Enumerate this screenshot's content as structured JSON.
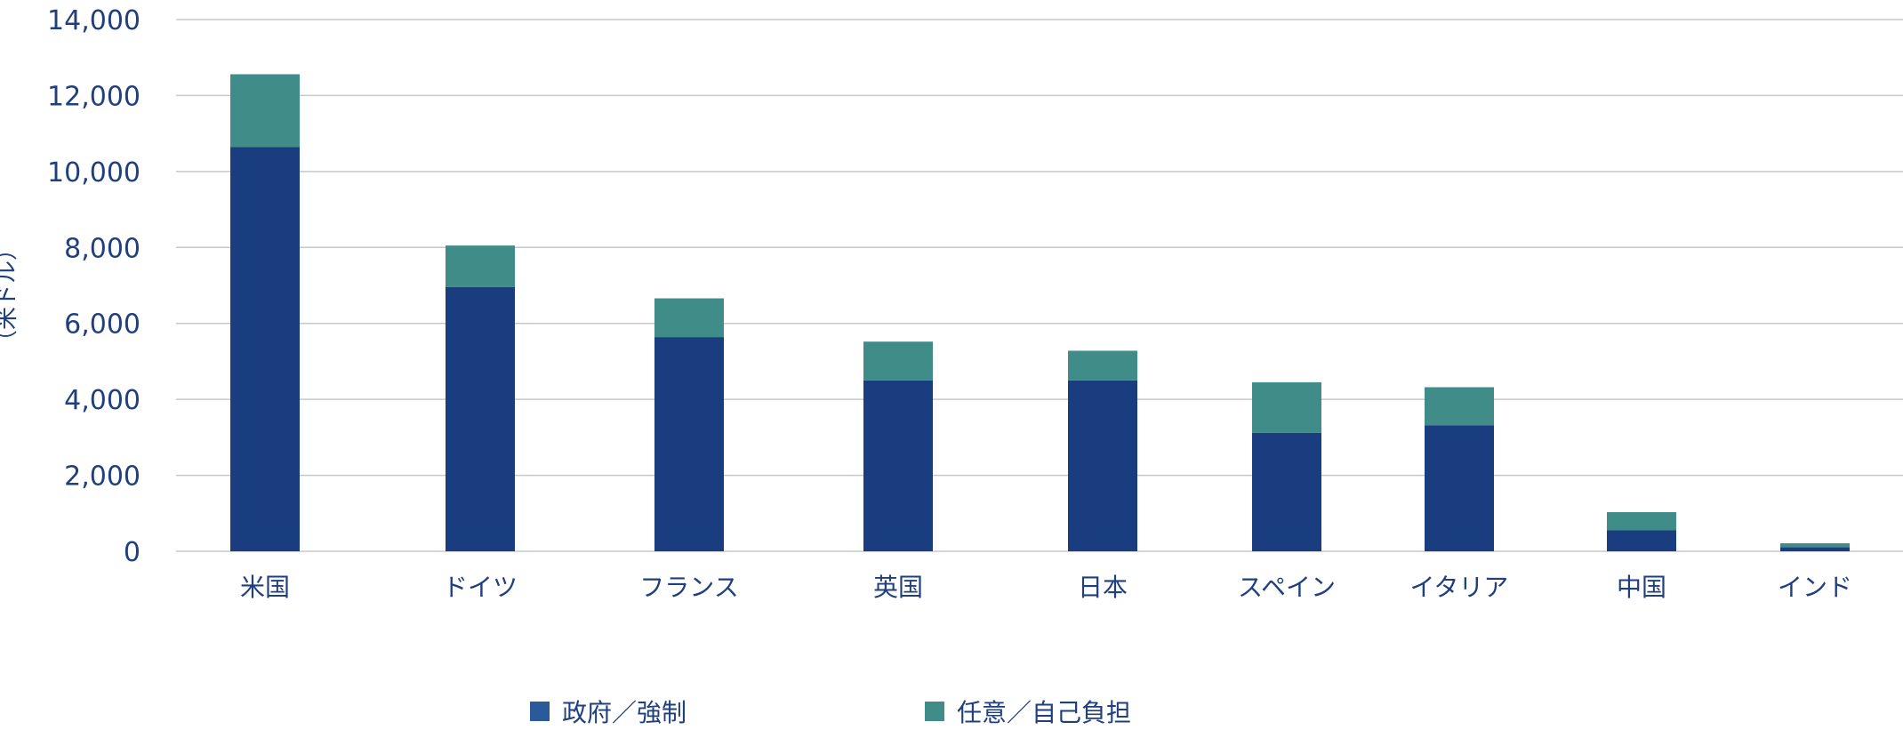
{
  "chart_data": {
    "type": "bar",
    "stacked": true,
    "categories": [
      "米国",
      "ドイツ",
      "フランス",
      "英国",
      "日本",
      "スペイン",
      "イタリア",
      "中国",
      "インド"
    ],
    "series": [
      {
        "name": "政府／強制",
        "color": "#1a3d80",
        "values": [
          10640,
          6960,
          5640,
          4500,
          4500,
          3120,
          3320,
          550,
          110
        ]
      },
      {
        "name": "任意／自己負担",
        "color": "#3f8c89",
        "values": [
          1920,
          1090,
          1020,
          1020,
          780,
          1330,
          1000,
          480,
          100
        ]
      }
    ],
    "ylabel": "（米ドル）",
    "ylim": [
      0,
      14000
    ],
    "yticks": [
      0,
      2000,
      4000,
      6000,
      8000,
      10000,
      12000,
      14000
    ],
    "ytick_labels": [
      "0",
      "2,000",
      "4,000",
      "6,000",
      "8,000",
      "10,000",
      "12,000",
      "14,000"
    ],
    "grid": true,
    "legend": "bottom"
  }
}
